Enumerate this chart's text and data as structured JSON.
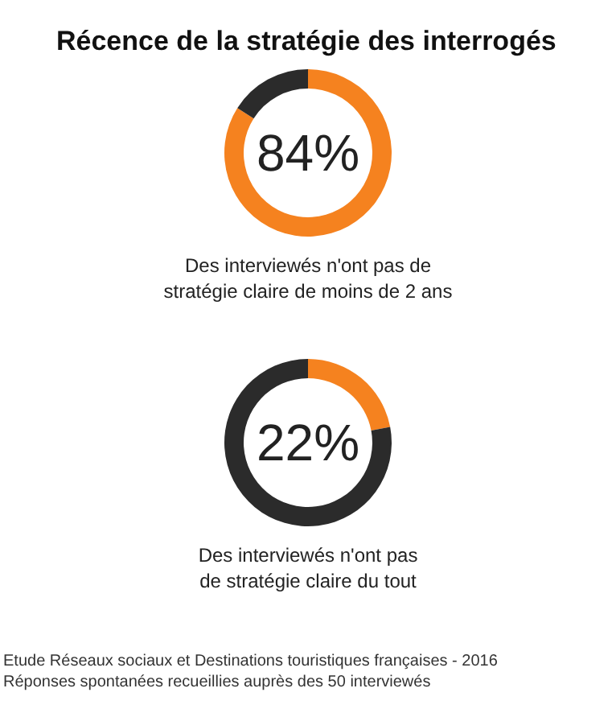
{
  "chart_data": [
    {
      "type": "donut",
      "title": "Récence de la stratégie des interrogés",
      "subtitle": "Des interviewés n'ont pas de\nstratégie claire de moins de 2 ans",
      "categories": [
        null,
        null
      ],
      "values": [
        84,
        16
      ],
      "colors": [
        "#f5821f",
        "#2b2b2b"
      ],
      "value_labels": [
        "84%",
        null
      ]
    },
    {
      "type": "donut",
      "subtitle": "Des interviewés n'ont pas\nde stratégie claire du tout",
      "categories": [
        null,
        null
      ],
      "values": [
        22,
        78
      ],
      "colors": [
        "#f5821f",
        "#2b2b2b"
      ],
      "value_labels": [
        "22%",
        null
      ],
      "annotations": [
        "Etude Réseaux sociaux et Destinations touristiques françaises - 2016",
        "Réponses spontanées recueillies auprès des 50 interviewés"
      ]
    }
  ]
}
